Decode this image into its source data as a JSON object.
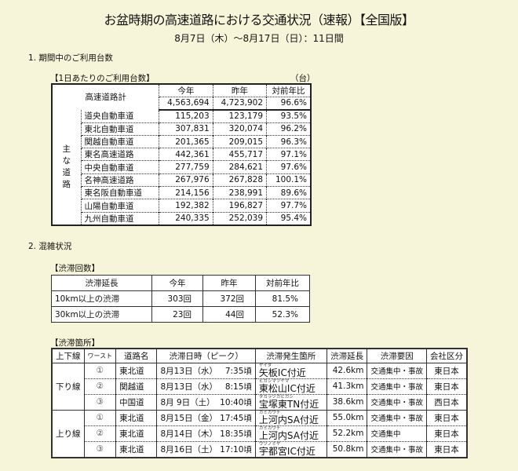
{
  "title": "お盆時期の高速道路における交通状況（速報）【全国版】",
  "subtitle": "8月7日（木）〜8月17日（日）：11日間",
  "section1": {
    "heading": "1. 期間中のご利用台数",
    "table_label": "【1日あたりのご利用台数】",
    "unit": "（台）",
    "columns": [
      "今年",
      "昨年",
      "対前年比"
    ],
    "total": {
      "name": "高速道路計",
      "this_year": "4,563,694",
      "last_year": "4,723,902",
      "ratio": "96.6%"
    },
    "group_label": "主な道路",
    "rows": [
      {
        "name": "道央自動車道",
        "this_year": "115,203",
        "last_year": "123,179",
        "ratio": "93.5%"
      },
      {
        "name": "東北自動車道",
        "this_year": "307,831",
        "last_year": "320,074",
        "ratio": "96.2%"
      },
      {
        "name": "関越自動車道",
        "this_year": "201,365",
        "last_year": "209,015",
        "ratio": "96.3%"
      },
      {
        "name": "東名高速道路",
        "this_year": "442,361",
        "last_year": "455,717",
        "ratio": "97.1%"
      },
      {
        "name": "中央自動車道",
        "this_year": "277,759",
        "last_year": "284,621",
        "ratio": "97.6%"
      },
      {
        "name": "名神高速道路",
        "this_year": "267,976",
        "last_year": "267,828",
        "ratio": "100.1%"
      },
      {
        "name": "東名阪自動車道",
        "this_year": "214,156",
        "last_year": "238,991",
        "ratio": "89.6%"
      },
      {
        "name": "山陽自動車道",
        "this_year": "192,382",
        "last_year": "196,827",
        "ratio": "97.7%"
      },
      {
        "name": "九州自動車道",
        "this_year": "240,335",
        "last_year": "252,039",
        "ratio": "95.4%"
      }
    ]
  },
  "section2": {
    "heading": "2. 混雑状況",
    "count_label": "【渋滞回数】",
    "count_columns": [
      "渋滞延長",
      "今年",
      "昨年",
      "対前年比"
    ],
    "count_rows": [
      {
        "length": "10km以上の渋滞",
        "this_year": "303回",
        "last_year": "372回",
        "ratio": "81.5%"
      },
      {
        "length": "30km以上の渋滞",
        "this_year": "23回",
        "last_year": "44回",
        "ratio": "52.3%"
      }
    ],
    "spots_label": "【渋滞箇所】",
    "spots_columns": [
      "上下線",
      "ワースト",
      "道路名",
      "渋滞日時（ピーク）",
      "渋滞発生箇所",
      "渋滞延長",
      "渋滞要因",
      "会社区分"
    ],
    "down_label": "下り線",
    "up_label": "上り線",
    "down": [
      {
        "rank": "①",
        "road": "東北道",
        "date": "8月13日（水）",
        "time": "7:35頃",
        "ruby": "ヤイタ",
        "place": "矢板IC付近",
        "length": "42.6km",
        "cause": "交通集中・事故",
        "company": "東日本"
      },
      {
        "rank": "②",
        "road": "関越道",
        "date": "8月13日（水）",
        "time": "8:15頃",
        "ruby": "ヒガシマツヤマ",
        "place": "東松山IC付近",
        "length": "41.3km",
        "cause": "交通集中・事故",
        "company": "東日本"
      },
      {
        "rank": "③",
        "road": "中国道",
        "date": "8月 9日（土）",
        "time": "10:40頃",
        "ruby": "タカラヅカヒガシ",
        "place": "宝塚東TN付近",
        "length": "38.6km",
        "cause": "交通集中・事故",
        "company": "西日本"
      }
    ],
    "up": [
      {
        "rank": "①",
        "road": "東北道",
        "date": "8月15日（金）",
        "time": "17:45頃",
        "ruby": "カミカワチ",
        "place": "上河内SA付近",
        "length": "55.0km",
        "cause": "交通集中・事故",
        "company": "東日本"
      },
      {
        "rank": "②",
        "road": "東北道",
        "date": "8月14日（木）",
        "time": "18:35頃",
        "ruby": "カミカワチ",
        "place": "上河内SA付近",
        "length": "52.2km",
        "cause": "交通集中",
        "company": "東日本"
      },
      {
        "rank": "③",
        "road": "東北道",
        "date": "8月16日（土）",
        "time": "17:10頃",
        "ruby": "ウツノミヤ",
        "place": "宇都宮IC付近",
        "length": "50.8km",
        "cause": "交通集中・事故",
        "company": "東日本"
      }
    ]
  }
}
